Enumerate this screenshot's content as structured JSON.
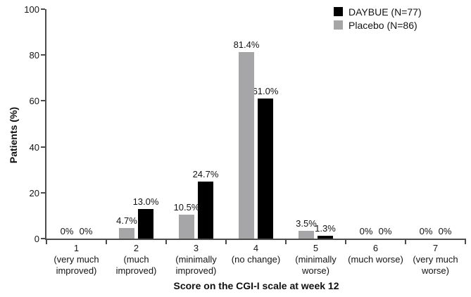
{
  "chart_data": {
    "type": "bar",
    "title": "",
    "xlabel": "Score on the CGI-I scale at week 12",
    "ylabel": "Patients (%)",
    "ylim": [
      0,
      100
    ],
    "yticks": [
      0,
      20,
      40,
      60,
      80,
      100
    ],
    "grid": false,
    "legend_position": "top-right",
    "categories": [
      {
        "score": "1",
        "description": "(very much improved)"
      },
      {
        "score": "2",
        "description": "(much improved)"
      },
      {
        "score": "3",
        "description": "(minimally improved)"
      },
      {
        "score": "4",
        "description": "(no change)"
      },
      {
        "score": "5",
        "description": "(minimally worse)"
      },
      {
        "score": "6",
        "description": "(much worse)"
      },
      {
        "score": "7",
        "description": "(very much worse)"
      }
    ],
    "series": [
      {
        "name": "DAYBUE (N=77)",
        "color": "#000000",
        "pair_position": "right",
        "values": [
          0,
          13.0,
          24.7,
          61.0,
          1.3,
          0,
          0
        ],
        "value_labels": [
          "0%",
          "13.0%",
          "24.7%",
          "61.0%",
          "1.3%",
          "0%",
          "0%"
        ]
      },
      {
        "name": "Placebo (N=86)",
        "color": "#a6a6a8",
        "pair_position": "left",
        "values": [
          0,
          4.7,
          10.5,
          81.4,
          3.5,
          0,
          0
        ],
        "value_labels": [
          "0%",
          "4.7%",
          "10.5%",
          "81.4%",
          "3.5%",
          "0%",
          "0%"
        ]
      }
    ]
  }
}
